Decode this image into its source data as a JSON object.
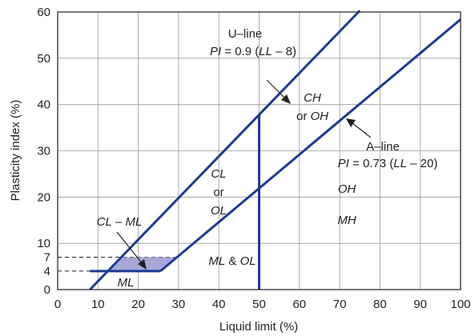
{
  "chart_data": {
    "type": "line",
    "xlabel": "Liquid limit (%)",
    "ylabel": "Plasticity index (%)",
    "xlim": [
      0,
      100
    ],
    "ylim": [
      0,
      60
    ],
    "x_ticks": [
      0,
      10,
      20,
      30,
      40,
      50,
      60,
      70,
      80,
      90,
      100
    ],
    "y_ticks": [
      0,
      4,
      7,
      10,
      20,
      30,
      40,
      50,
      60
    ],
    "grid": true,
    "colors": {
      "line": "#1f3a93",
      "shade": "#a8a8d8",
      "grid": "#999999"
    },
    "series": [
      {
        "name": "U–line",
        "equation": "PI = 0.9 (LL – 8)",
        "x": [
          8,
          75
        ],
        "y": [
          0,
          60.3
        ]
      },
      {
        "name": "A–line",
        "equation": "PI = 0.73 (LL – 20)",
        "x": [
          25.5,
          100
        ],
        "y": [
          4,
          58.4
        ]
      },
      {
        "name": "",
        "x": [
          50,
          50
        ],
        "y": [
          0,
          37.8
        ]
      }
    ],
    "lower_boundary": {
      "x": [
        8,
        25.5
      ],
      "y": [
        4,
        4
      ]
    },
    "shaded_zone": {
      "label": "CL – ML",
      "x": [
        12.4,
        25.5,
        29.6,
        15.8
      ],
      "y": [
        4,
        4,
        7,
        7
      ]
    },
    "dashed_refs": [
      {
        "y": 7,
        "x_end": 29.6
      },
      {
        "y": 4,
        "x_end": 12.4
      }
    ],
    "annotations": {
      "u_line": {
        "name": "U–line",
        "eq_pre": "PI",
        "eq_mid": " = 0.9 (",
        "eq_var": "LL",
        "eq_post": " – 8)"
      },
      "a_line": {
        "name": "A–line",
        "eq_pre": "PI",
        "eq_mid": " = 0.73 (",
        "eq_var": "LL",
        "eq_post": " – 20)"
      },
      "regions": {
        "ch_1": "CH",
        "ch_2": "or ",
        "ch_3": "OH",
        "cl_1": "CL",
        "cl_2": "or",
        "cl_3": "OL",
        "oh": "OH",
        "mh": "MH",
        "clml_1": "CL",
        "clml_2": " – ",
        "clml_3": "ML",
        "ml": "ML",
        "mlol_1": "ML",
        "mlol_2": " & ",
        "mlol_3": "OL"
      }
    }
  }
}
